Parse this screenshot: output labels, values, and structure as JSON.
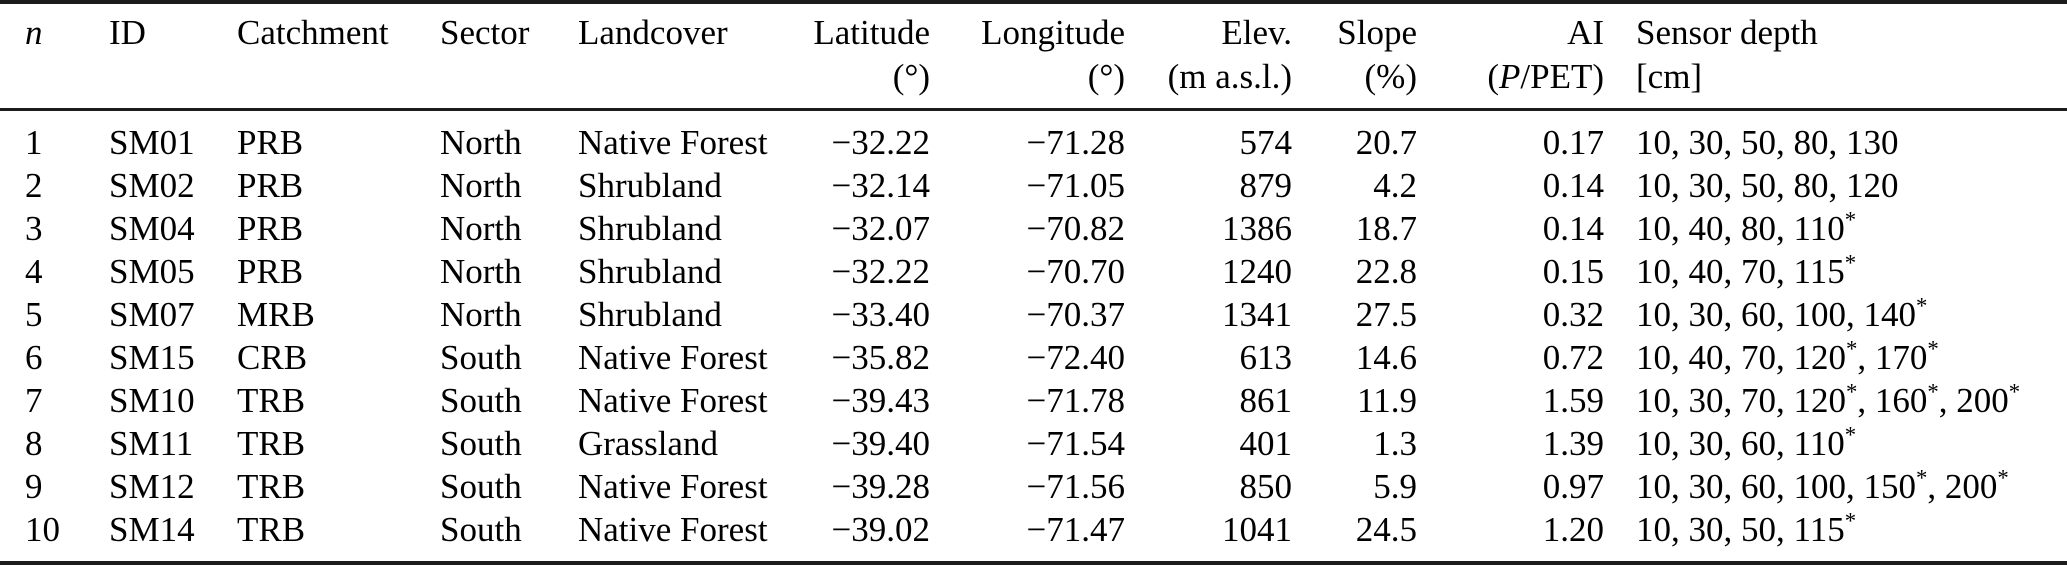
{
  "header": {
    "n": {
      "label": "n"
    },
    "id": {
      "label": "ID"
    },
    "catchment": {
      "label": "Catchment"
    },
    "sector": {
      "label": "Sector"
    },
    "landcover": {
      "label": "Landcover"
    },
    "latitude": {
      "label": "Latitude",
      "unit": "(°)"
    },
    "longitude": {
      "label": "Longitude",
      "unit": "(°)"
    },
    "elevation": {
      "label": "Elev.",
      "unit": "(m a.s.l.)"
    },
    "slope": {
      "label": "Slope",
      "unit": "(%)"
    },
    "ai": {
      "label": "AI",
      "unit_open": "(",
      "unit_italic": "P",
      "unit_rest": "/PET)"
    },
    "sensor_depth": {
      "label": "Sensor depth",
      "unit": "[cm]"
    }
  },
  "rows": [
    {
      "n": "1",
      "id": "SM01",
      "catchment": "PRB",
      "sector": "North",
      "landcover": "Native Forest",
      "latitude": "−32.22",
      "longitude": "−71.28",
      "elevation": "574",
      "slope": "20.7",
      "ai": "0.17",
      "sensor_depths": "10, 30, 50, 80, 130"
    },
    {
      "n": "2",
      "id": "SM02",
      "catchment": "PRB",
      "sector": "North",
      "landcover": "Shrubland",
      "latitude": "−32.14",
      "longitude": "−71.05",
      "elevation": "879",
      "slope": "4.2",
      "ai": "0.14",
      "sensor_depths": "10, 30, 50, 80, 120"
    },
    {
      "n": "3",
      "id": "SM04",
      "catchment": "PRB",
      "sector": "North",
      "landcover": "Shrubland",
      "latitude": "−32.07",
      "longitude": "−70.82",
      "elevation": "1386",
      "slope": "18.7",
      "ai": "0.14",
      "sensor_depths": "10, 40, 80, 110*"
    },
    {
      "n": "4",
      "id": "SM05",
      "catchment": "PRB",
      "sector": "North",
      "landcover": "Shrubland",
      "latitude": "−32.22",
      "longitude": "−70.70",
      "elevation": "1240",
      "slope": "22.8",
      "ai": "0.15",
      "sensor_depths": "10, 40, 70, 115*"
    },
    {
      "n": "5",
      "id": "SM07",
      "catchment": "MRB",
      "sector": "North",
      "landcover": "Shrubland",
      "latitude": "−33.40",
      "longitude": "−70.37",
      "elevation": "1341",
      "slope": "27.5",
      "ai": "0.32",
      "sensor_depths": "10, 30, 60, 100, 140*"
    },
    {
      "n": "6",
      "id": "SM15",
      "catchment": "CRB",
      "sector": "South",
      "landcover": "Native Forest",
      "latitude": "−35.82",
      "longitude": "−72.40",
      "elevation": "613",
      "slope": "14.6",
      "ai": "0.72",
      "sensor_depths": "10, 40, 70, 120*, 170*"
    },
    {
      "n": "7",
      "id": "SM10",
      "catchment": "TRB",
      "sector": "South",
      "landcover": "Native Forest",
      "latitude": "−39.43",
      "longitude": "−71.78",
      "elevation": "861",
      "slope": "11.9",
      "ai": "1.59",
      "sensor_depths": "10, 30, 70, 120*, 160*, 200*"
    },
    {
      "n": "8",
      "id": "SM11",
      "catchment": "TRB",
      "sector": "South",
      "landcover": "Grassland",
      "latitude": "−39.40",
      "longitude": "−71.54",
      "elevation": "401",
      "slope": "1.3",
      "ai": "1.39",
      "sensor_depths": "10, 30, 60, 110*"
    },
    {
      "n": "9",
      "id": "SM12",
      "catchment": "TRB",
      "sector": "South",
      "landcover": "Native Forest",
      "latitude": "−39.28",
      "longitude": "−71.56",
      "elevation": "850",
      "slope": "5.9",
      "ai": "0.97",
      "sensor_depths": "10, 30, 60, 100, 150*, 200*"
    },
    {
      "n": "10",
      "id": "SM14",
      "catchment": "TRB",
      "sector": "South",
      "landcover": "Native Forest",
      "latitude": "−39.02",
      "longitude": "−71.47",
      "elevation": "1041",
      "slope": "24.5",
      "ai": "1.20",
      "sensor_depths": "10, 30, 50, 115*"
    }
  ]
}
